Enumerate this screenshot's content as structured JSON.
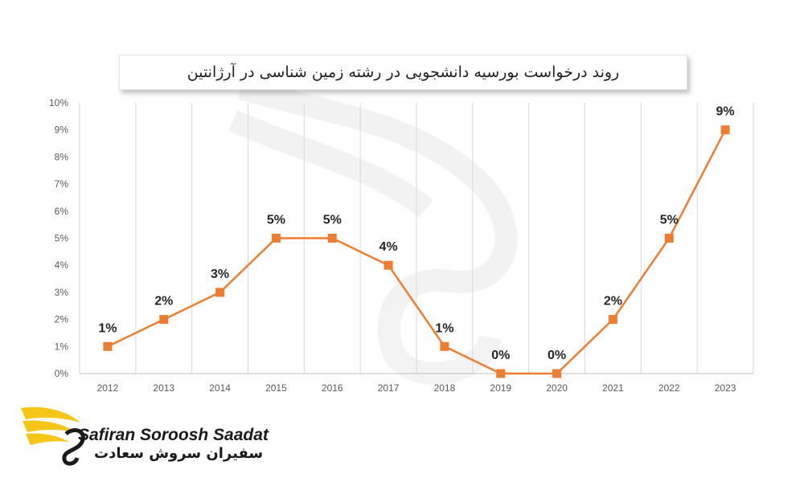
{
  "chart_data": {
    "type": "line",
    "title": "روند درخواست بورسیه دانشجویی در رشته زمین شناسی در آرژانتین",
    "categories": [
      "2012",
      "2013",
      "2014",
      "2015",
      "2016",
      "2017",
      "2018",
      "2019",
      "2020",
      "2021",
      "2022",
      "2023"
    ],
    "series": [
      {
        "values": [
          1,
          2,
          3,
          5,
          5,
          4,
          1,
          0,
          0,
          2,
          5,
          9
        ],
        "labels": [
          "1%",
          "2%",
          "3%",
          "5%",
          "5%",
          "4%",
          "1%",
          "0%",
          "0%",
          "2%",
          "5%",
          "9%"
        ]
      }
    ],
    "yticks": [
      "0%",
      "1%",
      "2%",
      "3%",
      "4%",
      "5%",
      "6%",
      "7%",
      "8%",
      "9%",
      "10%"
    ],
    "ylim": [
      0,
      10
    ],
    "grid": "vertical",
    "line_color": "#ED7D31",
    "marker": "square"
  },
  "logo": {
    "text_en": "Safiran Soroosh Saadat",
    "text_fa": "سفیران سروش سعادت",
    "colors": {
      "wing": "#F5C518",
      "dark": "#1a1a1a"
    }
  }
}
